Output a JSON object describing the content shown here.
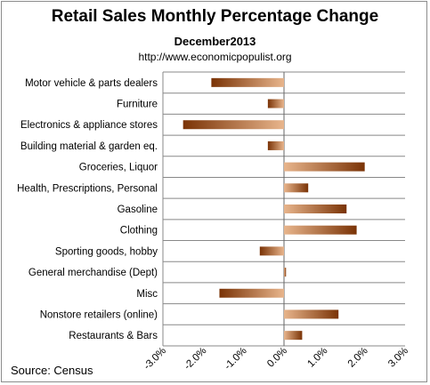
{
  "title": "Retail Sales Monthly  Percentage Change",
  "subtitle": "December2013",
  "url": "http://www.economicpopulist.org",
  "source": "Source:  Census",
  "colors": {
    "bar_dark": "#7a3306",
    "bar_light": "#e8b58c",
    "grid": "#888888"
  },
  "chart_data": {
    "type": "bar",
    "orientation": "horizontal",
    "categories": [
      "Motor vehicle & parts dealers",
      "Furniture",
      "Electronics & appliance stores",
      "Building material & garden eq.",
      "Groceries, Liquor",
      "Health, Prescriptions, Personal",
      "Gasoline",
      "Clothing",
      "Sporting goods, hobby",
      "General merchandise (Dept)",
      "Misc",
      "Nonstore retailers (online)",
      "Restaurants & Bars"
    ],
    "values": [
      -1.8,
      -0.4,
      -2.5,
      -0.4,
      2.0,
      0.6,
      1.55,
      1.8,
      -0.6,
      0.05,
      -1.6,
      1.35,
      0.45
    ],
    "xlim": [
      -3.0,
      3.0
    ],
    "ticks": [
      "-3.0%",
      "-2.0%",
      "-1.0%",
      "0.0%",
      "1.0%",
      "2.0%",
      "3.0%"
    ],
    "tick_values": [
      -3,
      -2,
      -1,
      0,
      1,
      2,
      3
    ],
    "grid": "horizontal row separators",
    "legend": "none"
  }
}
